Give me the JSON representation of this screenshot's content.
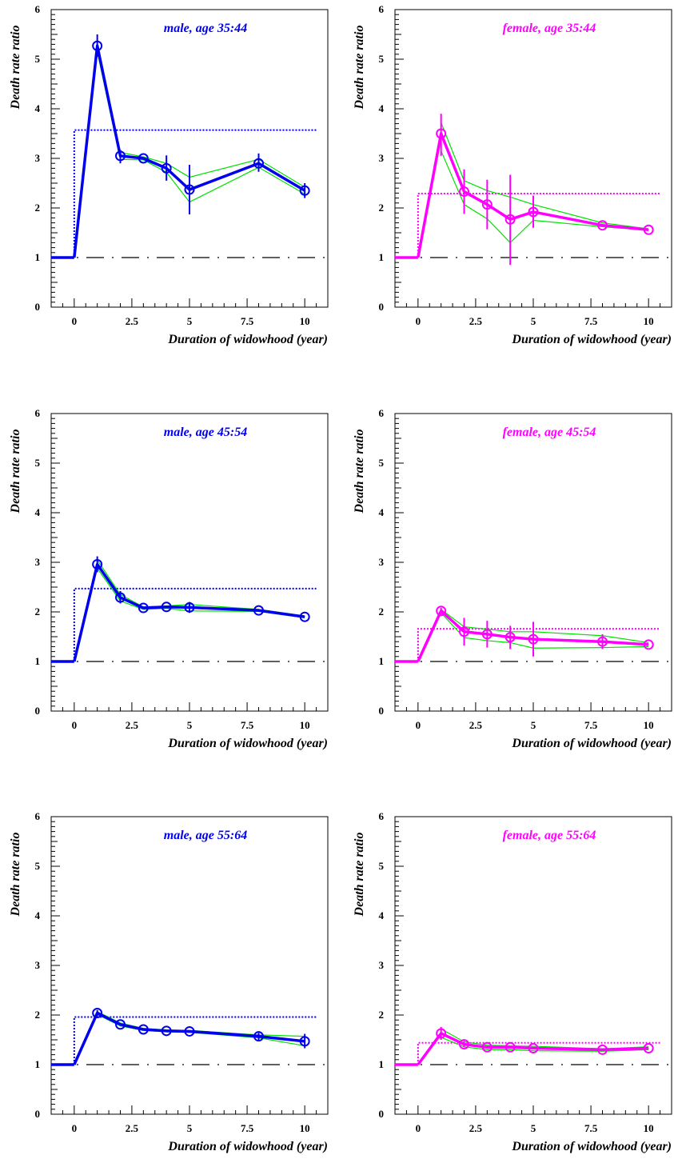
{
  "colors": {
    "male": "#0000ee",
    "female": "#ff00ff",
    "band": "#00e000",
    "axis": "#000000"
  },
  "chart_data": [
    {
      "type": "line",
      "title": "male, age 35:44",
      "xlabel": "Duration of widowhood (year)",
      "ylabel": "Death rate ratio",
      "xlim": [
        -1,
        11
      ],
      "ylim": [
        0,
        6
      ],
      "x_tick_labels": [
        "0",
        "2.5",
        "5",
        "7.5",
        "10"
      ],
      "y_tick_labels": [
        "0",
        "1",
        "2",
        "3",
        "4",
        "5",
        "6"
      ],
      "color_key": "male",
      "baseline": {
        "x": [
          -1,
          0
        ],
        "y": [
          1,
          1
        ]
      },
      "series": [
        {
          "x": [
            0,
            1,
            2,
            3,
            4,
            5,
            8,
            10
          ],
          "y": [
            1,
            5.27,
            3.05,
            3.0,
            2.8,
            2.37,
            2.9,
            2.35
          ]
        }
      ],
      "error_bars": [
        {
          "x": 1,
          "lo": 5.05,
          "hi": 5.5
        },
        {
          "x": 2,
          "lo": 2.9,
          "hi": 3.17
        },
        {
          "x": 4,
          "lo": 2.55,
          "hi": 3.06
        },
        {
          "x": 5,
          "lo": 1.87,
          "hi": 2.87
        },
        {
          "x": 8,
          "lo": 2.73,
          "hi": 3.1
        },
        {
          "x": 10,
          "lo": 2.2,
          "hi": 2.5
        }
      ],
      "band_lines": [
        {
          "x": [
            1,
            2,
            3,
            4,
            5,
            8,
            10
          ],
          "y": [
            5.2,
            3.12,
            3.03,
            2.9,
            2.62,
            2.98,
            2.42
          ]
        },
        {
          "x": [
            1,
            2,
            3,
            4,
            5,
            8,
            10
          ],
          "y": [
            5.15,
            2.98,
            2.97,
            2.72,
            2.12,
            2.82,
            2.28
          ]
        }
      ],
      "overall": {
        "x_start": 0,
        "x_end": 10.5,
        "y": 3.57
      },
      "reference": 1
    },
    {
      "type": "line",
      "title": "female, age 35:44",
      "xlabel": "Duration of widowhood (year)",
      "ylabel": "Death rate ratio",
      "xlim": [
        -1,
        11
      ],
      "ylim": [
        0,
        6
      ],
      "x_tick_labels": [
        "0",
        "2.5",
        "5",
        "7.5",
        "10"
      ],
      "y_tick_labels": [
        "0",
        "1",
        "2",
        "3",
        "4",
        "5",
        "6"
      ],
      "color_key": "female",
      "baseline": {
        "x": [
          -1,
          0
        ],
        "y": [
          1,
          1
        ]
      },
      "series": [
        {
          "x": [
            0,
            1,
            2,
            3,
            4,
            5,
            8,
            10
          ],
          "y": [
            1,
            3.5,
            2.33,
            2.07,
            1.77,
            1.92,
            1.65,
            1.56
          ]
        }
      ],
      "error_bars": [
        {
          "x": 1,
          "lo": 3.05,
          "hi": 3.9
        },
        {
          "x": 2,
          "lo": 1.88,
          "hi": 2.78
        },
        {
          "x": 3,
          "lo": 1.57,
          "hi": 2.57
        },
        {
          "x": 4,
          "lo": 0.85,
          "hi": 2.67
        },
        {
          "x": 5,
          "lo": 1.6,
          "hi": 2.25
        }
      ],
      "band_lines": [
        {
          "x": [
            1,
            2,
            3,
            4,
            5,
            8,
            10
          ],
          "y": [
            3.72,
            2.55,
            2.35,
            2.22,
            2.07,
            1.7,
            1.58
          ]
        },
        {
          "x": [
            1,
            2,
            3,
            4,
            5,
            8,
            10
          ],
          "y": [
            3.15,
            2.07,
            1.78,
            1.3,
            1.75,
            1.62,
            1.55
          ]
        }
      ],
      "overall": {
        "x_start": 0,
        "x_end": 10.5,
        "y": 2.29
      },
      "reference": 1
    },
    {
      "type": "line",
      "title": "male, age 45:54",
      "xlabel": "Duration of widowhood (year)",
      "ylabel": "Death rate ratio",
      "xlim": [
        -1,
        11
      ],
      "ylim": [
        0,
        6
      ],
      "x_tick_labels": [
        "0",
        "2.5",
        "5",
        "7.5",
        "10"
      ],
      "y_tick_labels": [
        "0",
        "1",
        "2",
        "3",
        "4",
        "5",
        "6"
      ],
      "color_key": "male",
      "baseline": {
        "x": [
          -1,
          0
        ],
        "y": [
          1,
          1
        ]
      },
      "series": [
        {
          "x": [
            0,
            1,
            2,
            3,
            4,
            5,
            8,
            10
          ],
          "y": [
            1,
            2.96,
            2.29,
            2.08,
            2.1,
            2.09,
            2.03,
            1.9
          ]
        }
      ],
      "error_bars": [
        {
          "x": 1,
          "lo": 2.8,
          "hi": 3.12
        },
        {
          "x": 2,
          "lo": 2.17,
          "hi": 2.42
        },
        {
          "x": 5,
          "lo": 1.98,
          "hi": 2.2
        }
      ],
      "band_lines": [
        {
          "x": [
            1,
            2,
            3,
            4,
            5,
            8,
            10
          ],
          "y": [
            3.05,
            2.35,
            2.1,
            2.12,
            2.15,
            2.05,
            1.92
          ]
        },
        {
          "x": [
            1,
            2,
            3,
            4,
            5,
            8,
            10
          ],
          "y": [
            2.88,
            2.22,
            2.05,
            2.07,
            2.02,
            2.01,
            1.88
          ]
        }
      ],
      "overall": {
        "x_start": 0,
        "x_end": 10.5,
        "y": 2.47
      },
      "reference": 1
    },
    {
      "type": "line",
      "title": "female, age 45:54",
      "xlabel": "Duration of widowhood (year)",
      "ylabel": "Death rate ratio",
      "xlim": [
        -1,
        11
      ],
      "ylim": [
        0,
        6
      ],
      "x_tick_labels": [
        "0",
        "2.5",
        "5",
        "7.5",
        "10"
      ],
      "y_tick_labels": [
        "0",
        "1",
        "2",
        "3",
        "4",
        "5",
        "6"
      ],
      "color_key": "female",
      "baseline": {
        "x": [
          -1,
          0
        ],
        "y": [
          1,
          1
        ]
      },
      "series": [
        {
          "x": [
            0,
            1,
            2,
            3,
            4,
            5,
            8,
            10
          ],
          "y": [
            1,
            2.02,
            1.6,
            1.55,
            1.49,
            1.45,
            1.4,
            1.34
          ]
        }
      ],
      "error_bars": [
        {
          "x": 1,
          "lo": 1.96,
          "hi": 2.08
        },
        {
          "x": 2,
          "lo": 1.32,
          "hi": 1.88
        },
        {
          "x": 3,
          "lo": 1.28,
          "hi": 1.82
        },
        {
          "x": 4,
          "lo": 1.25,
          "hi": 1.72
        },
        {
          "x": 5,
          "lo": 1.1,
          "hi": 1.8
        },
        {
          "x": 8,
          "lo": 1.25,
          "hi": 1.55
        }
      ],
      "band_lines": [
        {
          "x": [
            1,
            2,
            3,
            4,
            5,
            8,
            10
          ],
          "y": [
            2.05,
            1.7,
            1.65,
            1.6,
            1.6,
            1.52,
            1.38
          ]
        },
        {
          "x": [
            1,
            2,
            3,
            4,
            5,
            8,
            10
          ],
          "y": [
            1.98,
            1.48,
            1.42,
            1.38,
            1.27,
            1.28,
            1.3
          ]
        }
      ],
      "overall": {
        "x_start": 0,
        "x_end": 10.5,
        "y": 1.66
      },
      "reference": 1
    },
    {
      "type": "line",
      "title": "male, age 55:64",
      "xlabel": "Duration of widowhood (year)",
      "ylabel": "Death rate ratio",
      "xlim": [
        -1,
        11
      ],
      "ylim": [
        0,
        6
      ],
      "x_tick_labels": [
        "0",
        "2.5",
        "5",
        "7.5",
        "10"
      ],
      "y_tick_labels": [
        "0",
        "1",
        "2",
        "3",
        "4",
        "5",
        "6"
      ],
      "color_key": "male",
      "baseline": {
        "x": [
          -1,
          0
        ],
        "y": [
          1,
          1
        ]
      },
      "series": [
        {
          "x": [
            0,
            1,
            2,
            3,
            4,
            5,
            8,
            10
          ],
          "y": [
            1,
            2.04,
            1.81,
            1.71,
            1.68,
            1.67,
            1.57,
            1.47
          ]
        }
      ],
      "error_bars": [
        {
          "x": 1,
          "lo": 1.98,
          "hi": 2.1
        },
        {
          "x": 8,
          "lo": 1.5,
          "hi": 1.64
        },
        {
          "x": 10,
          "lo": 1.33,
          "hi": 1.62
        }
      ],
      "band_lines": [
        {
          "x": [
            1,
            2,
            3,
            4,
            5,
            8,
            10
          ],
          "y": [
            2.07,
            1.84,
            1.73,
            1.7,
            1.69,
            1.6,
            1.57
          ]
        },
        {
          "x": [
            1,
            2,
            3,
            4,
            5,
            8,
            10
          ],
          "y": [
            2.01,
            1.78,
            1.69,
            1.66,
            1.65,
            1.54,
            1.38
          ]
        }
      ],
      "overall": {
        "x_start": 0,
        "x_end": 10.5,
        "y": 1.96
      },
      "reference": 1
    },
    {
      "type": "line",
      "title": "female, age 55:64",
      "xlabel": "Duration of widowhood (year)",
      "ylabel": "Death rate ratio",
      "xlim": [
        -1,
        11
      ],
      "ylim": [
        0,
        6
      ],
      "x_tick_labels": [
        "0",
        "2.5",
        "5",
        "7.5",
        "10"
      ],
      "y_tick_labels": [
        "0",
        "1",
        "2",
        "3",
        "4",
        "5",
        "6"
      ],
      "color_key": "female",
      "baseline": {
        "x": [
          -1,
          0
        ],
        "y": [
          1,
          1
        ]
      },
      "series": [
        {
          "x": [
            0,
            1,
            2,
            3,
            4,
            5,
            8,
            10
          ],
          "y": [
            1,
            1.63,
            1.41,
            1.35,
            1.35,
            1.33,
            1.3,
            1.33
          ]
        }
      ],
      "error_bars": [
        {
          "x": 1,
          "lo": 1.5,
          "hi": 1.76
        },
        {
          "x": 2,
          "lo": 1.35,
          "hi": 1.47
        }
      ],
      "band_lines": [
        {
          "x": [
            1,
            2,
            3,
            4,
            5,
            8,
            10
          ],
          "y": [
            1.72,
            1.46,
            1.39,
            1.38,
            1.37,
            1.32,
            1.36
          ]
        },
        {
          "x": [
            1,
            2,
            3,
            4,
            5,
            8,
            10
          ],
          "y": [
            1.55,
            1.36,
            1.3,
            1.3,
            1.28,
            1.27,
            1.3
          ]
        }
      ],
      "overall": {
        "x_start": 0,
        "x_end": 10.5,
        "y": 1.44
      },
      "reference": 1
    }
  ]
}
